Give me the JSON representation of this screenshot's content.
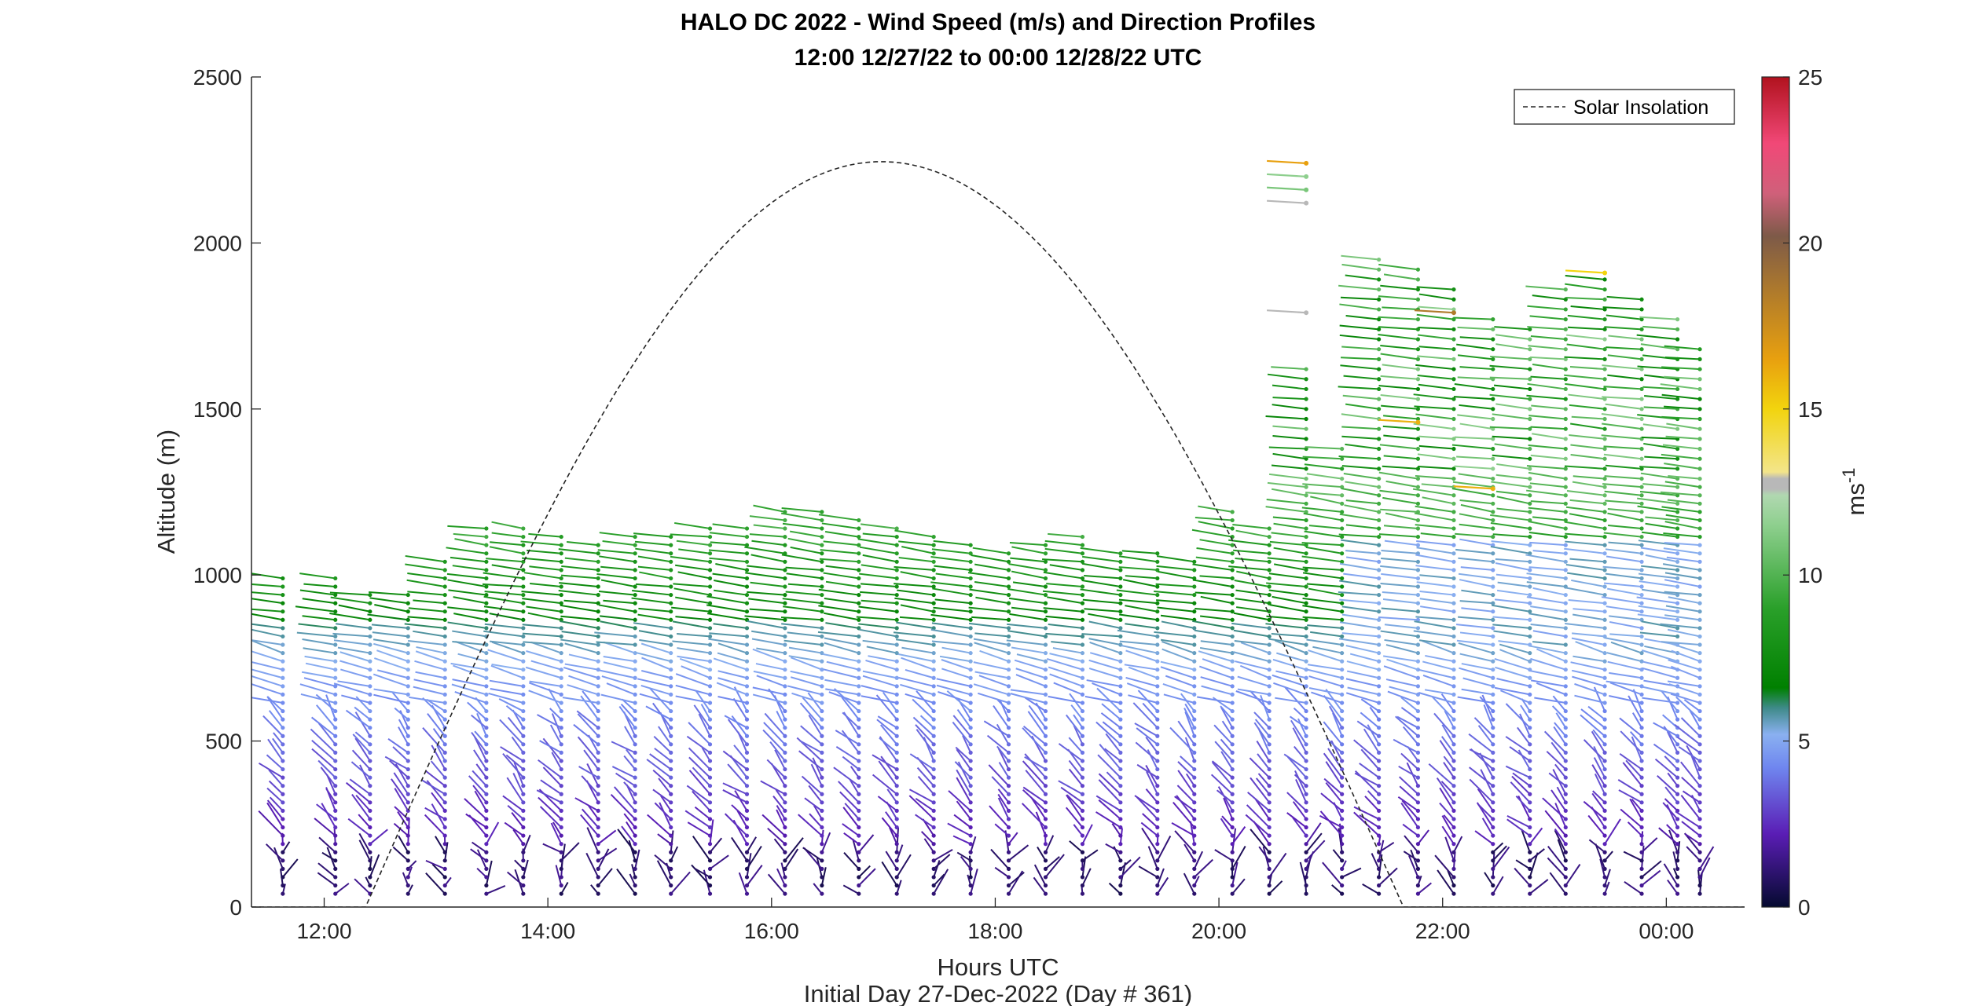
{
  "chart_data": {
    "type": "scatter",
    "title": "HALO DC 2022 - Wind Speed (m/s) and Direction Profiles",
    "subtitle": "12:00 12/27/22 to 00:00 12/28/22  UTC",
    "xlabel": "Hours UTC",
    "ylabel": "Altitude (m)",
    "footnote": "Initial Day 27-Dec-2022 (Day # 361)",
    "x_ticks": [
      "12:00",
      "14:00",
      "16:00",
      "18:00",
      "20:00",
      "22:00",
      "00:00"
    ],
    "x_tick_hours": [
      12,
      14,
      16,
      18,
      20,
      22,
      24
    ],
    "xlim": [
      11.35,
      24.7
    ],
    "ylim": [
      0,
      2500
    ],
    "y_ticks": [
      0,
      500,
      1000,
      1500,
      2000,
      2500
    ],
    "legend": {
      "label": "Solar Insolation",
      "placement": "top-right",
      "style": "dashed"
    },
    "colorbar": {
      "label": "ms",
      "label_superscript": "-1",
      "range": [
        0,
        25
      ],
      "ticks": [
        0,
        5,
        10,
        15,
        20,
        25
      ],
      "stops": [
        {
          "v": 0,
          "color": "#050a30"
        },
        {
          "v": 2.2,
          "color": "#5a1db5"
        },
        {
          "v": 4.2,
          "color": "#6f86ef"
        },
        {
          "v": 5.2,
          "color": "#8ab0f0"
        },
        {
          "v": 6.0,
          "color": "#3e8a88"
        },
        {
          "v": 6.6,
          "color": "#008000"
        },
        {
          "v": 9.0,
          "color": "#2aa02a"
        },
        {
          "v": 11.5,
          "color": "#8ecf8e"
        },
        {
          "v": 12.4,
          "color": "#b0d8b0"
        },
        {
          "v": 12.6,
          "color": "#b8b8b8"
        },
        {
          "v": 12.9,
          "color": "#b8b8b8"
        },
        {
          "v": 13.1,
          "color": "#f3e58a"
        },
        {
          "v": 15.0,
          "color": "#f2d40e"
        },
        {
          "v": 16.5,
          "color": "#e8a00f"
        },
        {
          "v": 18.5,
          "color": "#b07b2b"
        },
        {
          "v": 20.2,
          "color": "#7d5a48"
        },
        {
          "v": 21.5,
          "color": "#d0607a"
        },
        {
          "v": 23.0,
          "color": "#f14877"
        },
        {
          "v": 25,
          "color": "#b1121e"
        }
      ]
    },
    "solar_insolation": {
      "start_hour": 12.37,
      "peak_hour": 16.98,
      "end_hour": 21.65,
      "peak_altitude_m": 2245
    },
    "profile_times_hours": [
      11.63,
      12.1,
      12.41,
      12.75,
      13.08,
      13.45,
      13.78,
      14.12,
      14.45,
      14.78,
      15.1,
      15.45,
      15.78,
      16.12,
      16.45,
      16.78,
      17.12,
      17.45,
      17.78,
      18.12,
      18.45,
      18.78,
      19.12,
      19.45,
      19.78,
      20.12,
      20.45,
      20.78,
      21.1,
      21.43,
      21.78,
      22.1,
      22.45,
      22.78,
      23.1,
      23.45,
      23.78,
      24.1,
      24.3
    ],
    "profile_tops_m": [
      1010,
      1010,
      960,
      960,
      1060,
      1150,
      1160,
      1120,
      1110,
      1120,
      1130,
      1140,
      1160,
      1200,
      1210,
      1170,
      1160,
      1120,
      1100,
      1080,
      1100,
      1120,
      1080,
      1080,
      1060,
      1210,
      1160,
      1620,
      1400,
      1960,
      1920,
      1880,
      1790,
      1740,
      1880,
      1910,
      1830,
      1780,
      1700
    ],
    "notable_points": [
      {
        "hour": 20.78,
        "altitude_m": 2240,
        "speed_ms": 16.5
      },
      {
        "hour": 20.78,
        "altitude_m": 2200,
        "speed_ms": 11.5
      },
      {
        "hour": 20.78,
        "altitude_m": 2160,
        "speed_ms": 11.0
      },
      {
        "hour": 20.78,
        "altitude_m": 2120,
        "speed_ms": 12.8
      },
      {
        "hour": 20.78,
        "altitude_m": 1790,
        "speed_ms": 12.8
      },
      {
        "hour": 22.1,
        "altitude_m": 1790,
        "speed_ms": 18.5
      },
      {
        "hour": 21.78,
        "altitude_m": 1460,
        "speed_ms": 16.0
      },
      {
        "hour": 22.45,
        "altitude_m": 1260,
        "speed_ms": 16.0
      },
      {
        "hour": 23.45,
        "altitude_m": 1910,
        "speed_ms": 15.0
      }
    ]
  }
}
